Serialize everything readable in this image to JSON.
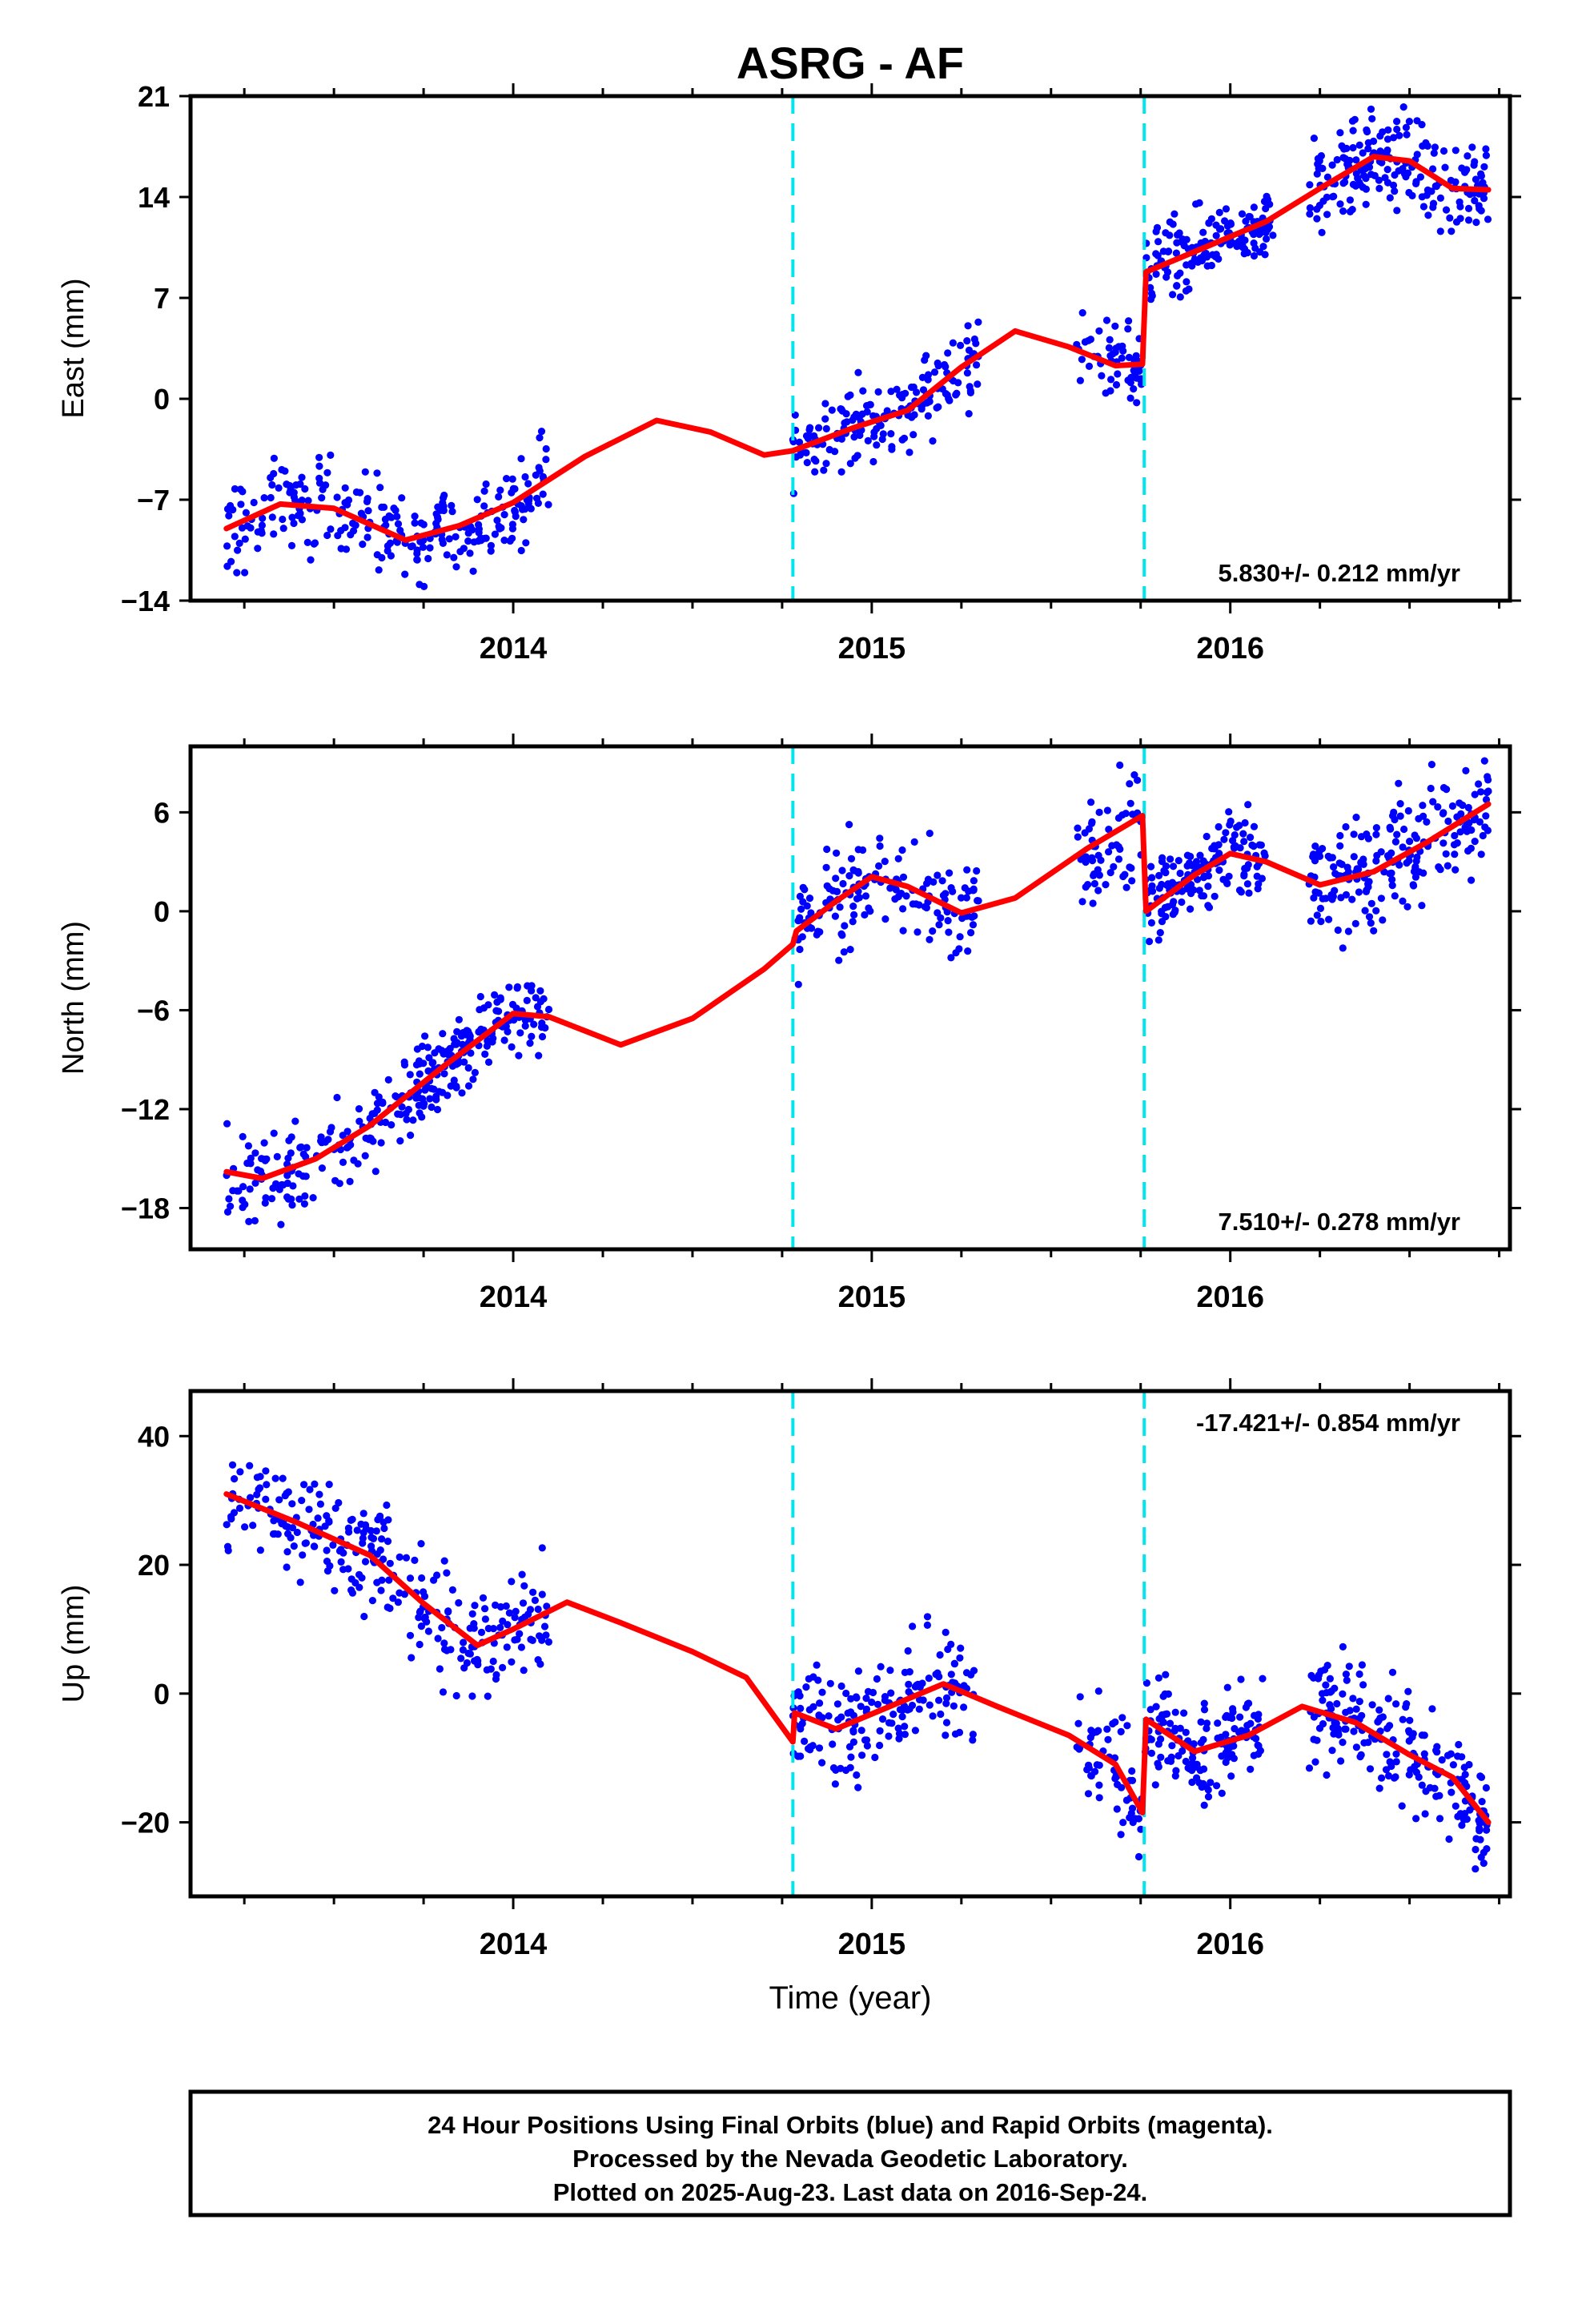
{
  "figure": {
    "title": "ASRG - AF",
    "xlabel": "Time (year)",
    "footer": [
      "24 Hour Positions Using Final Orbits (blue) and Rapid Orbits (magenta).",
      "Processed by the Nevada Geodetic Laboratory.",
      "Plotted on 2025-Aug-23. Last data on 2016-Sep-24."
    ]
  },
  "chart_data": [
    {
      "type": "scatter",
      "name": "east",
      "ylabel": "East (mm)",
      "rate": "5.830+/- 0.212 mm/yr",
      "rate_position": "bottom-right",
      "xlim": [
        2013.1,
        2016.78
      ],
      "ylim": [
        -14,
        21
      ],
      "yticks": [
        -14,
        -7,
        0,
        7,
        14,
        21
      ],
      "ytick_labels": [
        "−14",
        "−7",
        "0",
        "7",
        "14",
        "21"
      ],
      "xtick_labels": [
        "2014",
        "2015",
        "2016"
      ],
      "xticks": [
        2014,
        2015,
        2016
      ],
      "steps": [
        2014.78,
        2015.76
      ],
      "model_curve": [
        [
          2013.2,
          -9.0
        ],
        [
          2013.35,
          -7.3
        ],
        [
          2013.5,
          -7.6
        ],
        [
          2013.7,
          -9.8
        ],
        [
          2013.85,
          -8.8
        ],
        [
          2014.0,
          -7.2
        ],
        [
          2014.2,
          -4.0
        ],
        [
          2014.4,
          -1.5
        ],
        [
          2014.55,
          -2.3
        ],
        [
          2014.7,
          -3.9
        ],
        [
          2014.78,
          -3.6
        ],
        [
          2014.95,
          -2.0
        ],
        [
          2015.1,
          -0.8
        ],
        [
          2015.25,
          2.2
        ],
        [
          2015.4,
          4.7
        ],
        [
          2015.55,
          3.6
        ],
        [
          2015.68,
          2.3
        ],
        [
          2015.755,
          2.4
        ],
        [
          2015.765,
          8.8
        ],
        [
          2015.9,
          10.2
        ],
        [
          2016.1,
          12.3
        ],
        [
          2016.25,
          14.6
        ],
        [
          2016.4,
          16.8
        ],
        [
          2016.5,
          16.5
        ],
        [
          2016.62,
          14.6
        ],
        [
          2016.72,
          14.5
        ]
      ],
      "data_segments": [
        {
          "x0": 2013.2,
          "x1": 2014.1,
          "scatter": 1.6,
          "n": 260
        },
        {
          "x0": 2014.78,
          "x1": 2015.3,
          "scatter": 1.4,
          "n": 170
        },
        {
          "x0": 2015.57,
          "x1": 2015.755,
          "scatter": 1.3,
          "n": 60
        },
        {
          "x0": 2015.76,
          "x1": 2016.12,
          "scatter": 1.3,
          "n": 150
        },
        {
          "x0": 2016.22,
          "x1": 2016.72,
          "scatter": 1.5,
          "n": 200
        }
      ],
      "point_color": "#0000ff",
      "model_color": "#ff0000",
      "step_color": "#00e5ee"
    },
    {
      "type": "scatter",
      "name": "north",
      "ylabel": "North (mm)",
      "rate": "7.510+/- 0.278 mm/yr",
      "rate_position": "bottom-right",
      "xlim": [
        2013.1,
        2016.78
      ],
      "ylim": [
        -20.5,
        10
      ],
      "yticks": [
        -18,
        -12,
        -6,
        0,
        6
      ],
      "ytick_labels": [
        "−18",
        "−12",
        "−6",
        "0",
        "6"
      ],
      "xtick_labels": [
        "2014",
        "2015",
        "2016"
      ],
      "xticks": [
        2014,
        2015,
        2016
      ],
      "steps": [
        2014.78,
        2015.76
      ],
      "model_curve": [
        [
          2013.2,
          -15.8
        ],
        [
          2013.3,
          -16.2
        ],
        [
          2013.45,
          -15.0
        ],
        [
          2013.6,
          -13.0
        ],
        [
          2013.8,
          -9.5
        ],
        [
          2014.0,
          -6.2
        ],
        [
          2014.1,
          -6.4
        ],
        [
          2014.3,
          -8.1
        ],
        [
          2014.5,
          -6.5
        ],
        [
          2014.7,
          -3.5
        ],
        [
          2014.78,
          -2.0
        ],
        [
          2014.79,
          -1.2
        ],
        [
          2014.9,
          0.6
        ],
        [
          2015.0,
          2.1
        ],
        [
          2015.1,
          1.5
        ],
        [
          2015.25,
          -0.1
        ],
        [
          2015.4,
          0.8
        ],
        [
          2015.6,
          3.8
        ],
        [
          2015.755,
          5.8
        ],
        [
          2015.765,
          0.0
        ],
        [
          2015.9,
          2.2
        ],
        [
          2016.0,
          3.5
        ],
        [
          2016.1,
          3.0
        ],
        [
          2016.25,
          1.6
        ],
        [
          2016.4,
          2.4
        ],
        [
          2016.55,
          4.2
        ],
        [
          2016.72,
          6.5
        ]
      ],
      "data_segments": [
        {
          "x0": 2013.2,
          "x1": 2013.45,
          "scatter": 1.6,
          "n": 70
        },
        {
          "x0": 2013.45,
          "x1": 2013.75,
          "scatter": 1.5,
          "n": 90
        },
        {
          "x0": 2013.75,
          "x1": 2014.1,
          "scatter": 1.2,
          "n": 150
        },
        {
          "x0": 2014.79,
          "x1": 2015.3,
          "scatter": 1.4,
          "n": 160
        },
        {
          "x0": 2015.57,
          "x1": 2015.755,
          "scatter": 1.6,
          "n": 60
        },
        {
          "x0": 2015.76,
          "x1": 2016.1,
          "scatter": 1.3,
          "n": 150
        },
        {
          "x0": 2016.22,
          "x1": 2016.72,
          "scatter": 1.6,
          "n": 200
        }
      ],
      "point_color": "#0000ff",
      "model_color": "#ff0000",
      "step_color": "#00e5ee"
    },
    {
      "type": "scatter",
      "name": "up",
      "ylabel": "Up (mm)",
      "rate": "-17.421+/- 0.854 mm/yr",
      "rate_position": "top-right",
      "xlim": [
        2013.1,
        2016.78
      ],
      "ylim": [
        -31.5,
        47
      ],
      "yticks": [
        -20,
        0,
        20,
        40
      ],
      "ytick_labels": [
        "−20",
        "0",
        "20",
        "40"
      ],
      "xtick_labels": [
        "2014",
        "2015",
        "2016"
      ],
      "xticks": [
        2014,
        2015,
        2016
      ],
      "steps": [
        2014.78,
        2015.76
      ],
      "model_curve": [
        [
          2013.2,
          31.0
        ],
        [
          2013.4,
          26.5
        ],
        [
          2013.6,
          21.5
        ],
        [
          2013.75,
          14.0
        ],
        [
          2013.9,
          7.5
        ],
        [
          2014.0,
          10.0
        ],
        [
          2014.15,
          14.2
        ],
        [
          2014.3,
          11.0
        ],
        [
          2014.5,
          6.5
        ],
        [
          2014.65,
          2.5
        ],
        [
          2014.78,
          -7.5
        ],
        [
          2014.785,
          -3.0
        ],
        [
          2014.9,
          -5.5
        ],
        [
          2015.05,
          -2.0
        ],
        [
          2015.2,
          1.5
        ],
        [
          2015.35,
          -2.0
        ],
        [
          2015.55,
          -6.5
        ],
        [
          2015.68,
          -11.0
        ],
        [
          2015.755,
          -18.5
        ],
        [
          2015.765,
          -4.0
        ],
        [
          2015.9,
          -9.0
        ],
        [
          2016.05,
          -6.5
        ],
        [
          2016.2,
          -2.0
        ],
        [
          2016.35,
          -4.5
        ],
        [
          2016.5,
          -9.5
        ],
        [
          2016.62,
          -13.0
        ],
        [
          2016.72,
          -20.0
        ]
      ],
      "data_segments": [
        {
          "x0": 2013.2,
          "x1": 2014.1,
          "scatter": 4.5,
          "n": 280
        },
        {
          "x0": 2014.78,
          "x1": 2015.3,
          "scatter": 4.0,
          "n": 170
        },
        {
          "x0": 2015.57,
          "x1": 2015.755,
          "scatter": 4.5,
          "n": 60
        },
        {
          "x0": 2015.76,
          "x1": 2016.1,
          "scatter": 4.0,
          "n": 150
        },
        {
          "x0": 2016.22,
          "x1": 2016.72,
          "scatter": 4.5,
          "n": 200
        }
      ],
      "point_color": "#0000ff",
      "model_color": "#ff0000",
      "step_color": "#00e5ee"
    }
  ]
}
